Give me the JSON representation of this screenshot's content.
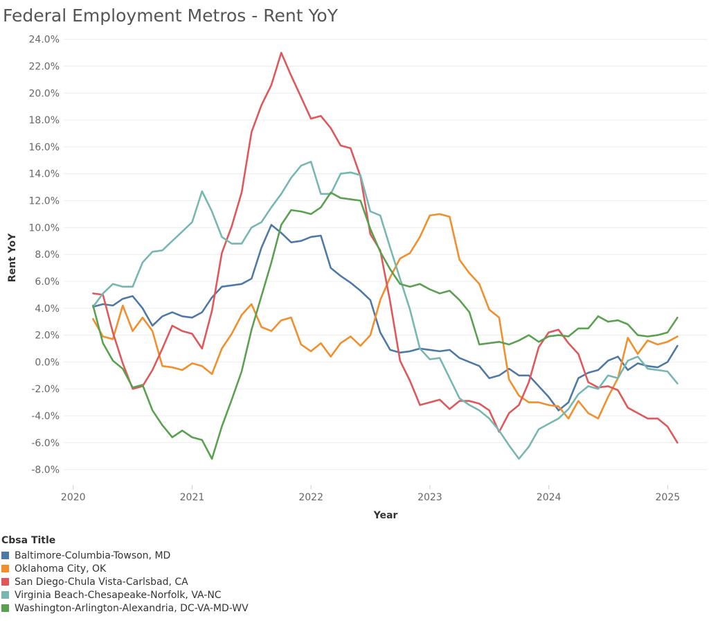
{
  "chart_data": {
    "type": "line",
    "title": "Federal Employment Metros - Rent YoY",
    "xlabel": "Year",
    "ylabel": "Rent YoY",
    "xlim": [
      2019.92,
      2025.33
    ],
    "ylim": [
      -9.0,
      24.5
    ],
    "x_ticks": [
      2020,
      2021,
      2022,
      2023,
      2024,
      2025
    ],
    "y_ticks": [
      -8,
      -6,
      -4,
      -2,
      0,
      2,
      4,
      6,
      8,
      10,
      12,
      14,
      16,
      18,
      20,
      22,
      24
    ],
    "y_tick_labels": [
      "-8.0%",
      "-6.0%",
      "-4.0%",
      "-2.0%",
      "0.0%",
      "2.0%",
      "4.0%",
      "6.0%",
      "8.0%",
      "10.0%",
      "12.0%",
      "14.0%",
      "16.0%",
      "18.0%",
      "20.0%",
      "22.0%",
      "24.0%"
    ],
    "grid": "horizontal",
    "legend_title": "Cbsa Title",
    "legend_position": "bottom-left",
    "x_start": 2020.167,
    "x_step": 0.0833,
    "series": [
      {
        "name": "Baltimore-Columbia-Towson, MD",
        "color": "#4e79a7",
        "values": [
          4.1,
          4.3,
          4.2,
          4.7,
          4.9,
          4.0,
          2.7,
          3.4,
          3.7,
          3.4,
          3.3,
          3.7,
          4.8,
          5.6,
          5.7,
          5.8,
          6.2,
          8.5,
          10.2,
          9.6,
          8.9,
          9.0,
          9.3,
          9.4,
          7.0,
          6.4,
          5.9,
          5.3,
          4.6,
          2.2,
          0.9,
          0.7,
          0.8,
          1.0,
          0.9,
          0.8,
          0.9,
          0.3,
          0.0,
          -0.3,
          -1.2,
          -1.0,
          -0.5,
          -1.0,
          -1.0,
          -1.8,
          -2.6,
          -3.6,
          -3.0,
          -1.2,
          -0.8,
          -0.6,
          0.1,
          0.4,
          -0.6,
          -0.1,
          -0.3,
          -0.4,
          0.0,
          1.2
        ]
      },
      {
        "name": "Oklahoma City, OK",
        "color": "#f28e2b",
        "values": [
          3.2,
          1.9,
          1.7,
          4.2,
          2.3,
          3.3,
          2.3,
          -0.3,
          -0.4,
          -0.6,
          -0.1,
          -0.3,
          -0.9,
          1.0,
          2.1,
          3.5,
          4.3,
          2.6,
          2.3,
          3.1,
          3.3,
          1.3,
          0.8,
          1.4,
          0.4,
          1.4,
          1.9,
          1.2,
          2.0,
          4.6,
          6.3,
          7.7,
          8.1,
          9.3,
          10.9,
          11.0,
          10.8,
          7.6,
          6.6,
          5.8,
          3.9,
          3.3,
          -1.3,
          -2.5,
          -3.0,
          -3.0,
          -3.2,
          -3.3,
          -4.2,
          -2.9,
          -3.8,
          -4.2,
          -2.6,
          -1.2,
          1.8,
          0.6,
          1.6,
          1.3,
          1.5,
          1.9
        ]
      },
      {
        "name": "San Diego-Chula Vista-Carlsbad, CA",
        "color": "#e15759",
        "values": [
          5.1,
          5.0,
          2.2,
          -0.1,
          -2.0,
          -1.8,
          -0.6,
          1.0,
          2.7,
          2.3,
          2.1,
          1.0,
          3.8,
          8.1,
          10.1,
          12.6,
          17.1,
          19.1,
          20.6,
          23.0,
          21.3,
          19.7,
          18.1,
          18.3,
          17.4,
          16.1,
          15.9,
          13.8,
          9.5,
          8.3,
          4.5,
          0.1,
          -1.4,
          -3.2,
          -3.0,
          -2.8,
          -3.5,
          -2.9,
          -2.9,
          -3.1,
          -3.6,
          -5.2,
          -3.8,
          -3.2,
          -1.5,
          1.1,
          2.2,
          2.4,
          1.4,
          0.6,
          -1.5,
          -1.9,
          -1.8,
          -2.1,
          -3.4,
          -3.8,
          -4.2,
          -4.2,
          -4.8,
          -6.0
        ]
      },
      {
        "name": "Virginia Beach-Chesapeake-Norfolk, VA-NC",
        "color": "#76b7b2",
        "values": [
          4.1,
          5.1,
          5.8,
          5.6,
          5.6,
          7.4,
          8.2,
          8.3,
          9.0,
          9.7,
          10.4,
          12.7,
          11.2,
          9.3,
          8.8,
          8.8,
          10.0,
          10.4,
          11.5,
          12.5,
          13.7,
          14.6,
          14.9,
          12.5,
          12.5,
          14.0,
          14.1,
          13.9,
          11.2,
          10.9,
          8.5,
          6.2,
          3.9,
          1.0,
          0.2,
          0.3,
          -1.2,
          -2.7,
          -3.2,
          -3.6,
          -4.2,
          -5.1,
          -6.2,
          -7.2,
          -6.3,
          -5.0,
          -4.6,
          -4.2,
          -3.5,
          -2.4,
          -1.8,
          -2.0,
          -1.0,
          -1.2,
          0.1,
          0.4,
          -0.5,
          -0.6,
          -0.7,
          -1.6
        ]
      },
      {
        "name": "Washington-Arlington-Alexandria, DC-VA-MD-WV",
        "color": "#59a14f",
        "values": [
          4.2,
          1.4,
          0.1,
          -0.5,
          -1.9,
          -1.7,
          -3.6,
          -4.7,
          -5.6,
          -5.1,
          -5.6,
          -5.8,
          -7.2,
          -4.8,
          -2.8,
          -0.7,
          2.4,
          4.9,
          7.4,
          10.2,
          11.3,
          11.2,
          11.0,
          11.5,
          12.6,
          12.2,
          12.1,
          12.0,
          9.9,
          8.2,
          6.9,
          5.8,
          5.6,
          5.8,
          5.4,
          5.1,
          5.3,
          4.6,
          3.7,
          1.3,
          1.4,
          1.5,
          1.3,
          1.6,
          2.0,
          1.5,
          1.9,
          2.0,
          1.9,
          2.5,
          2.5,
          3.4,
          3.0,
          3.1,
          2.8,
          2.0,
          1.9,
          2.0,
          2.2,
          3.3
        ]
      }
    ]
  }
}
